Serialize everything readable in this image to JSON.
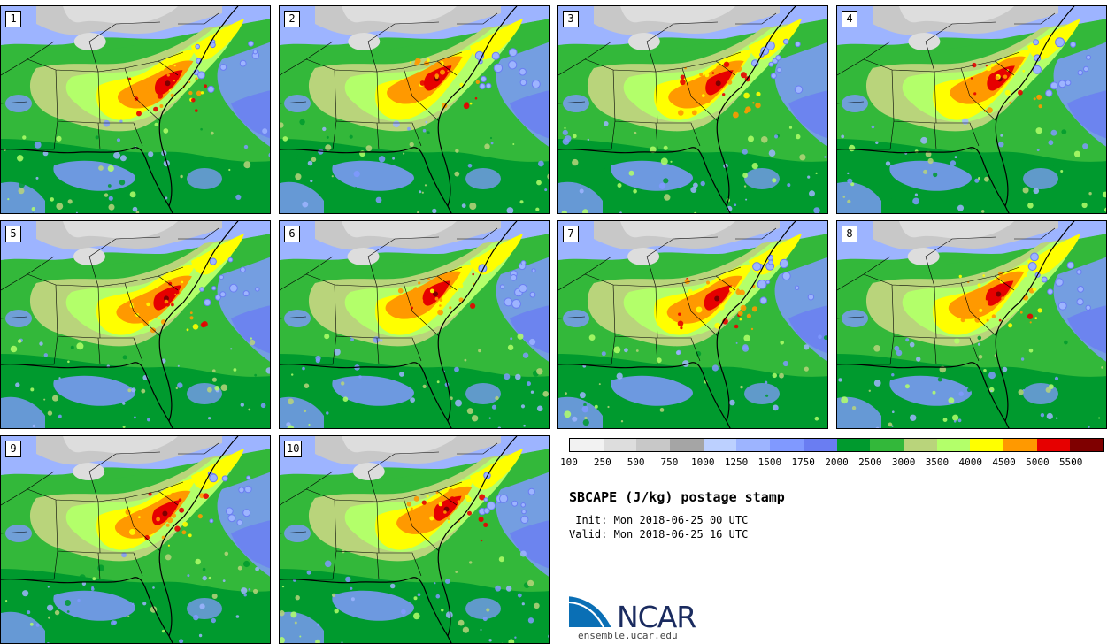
{
  "product": {
    "title": "SBCAPE (J/kg) postage stamp",
    "init": " Init: Mon 2018-06-25 00 UTC",
    "valid": "Valid: Mon 2018-06-25 16 UTC"
  },
  "members": [
    "1",
    "2",
    "3",
    "4",
    "5",
    "6",
    "7",
    "8",
    "9",
    "10"
  ],
  "colorbar": {
    "ticks": [
      "100",
      "250",
      "500",
      "750",
      "1000",
      "1250",
      "1500",
      "1750",
      "2000",
      "2500",
      "3000",
      "3500",
      "4000",
      "4500",
      "5000",
      "5500"
    ],
    "colors": [
      "#f2f2f2",
      "#dddddd",
      "#c8c8c8",
      "#a5a5a5",
      "#bcd0ff",
      "#9db4ff",
      "#8099ff",
      "#6a7df2",
      "#009a2e",
      "#33b83a",
      "#b9d47b",
      "#b3ff6a",
      "#ffff00",
      "#ff9900",
      "#e60000",
      "#7f0000"
    ]
  },
  "branding": {
    "logo_text": "NCAR",
    "url": "ensemble.ucar.edu"
  }
}
